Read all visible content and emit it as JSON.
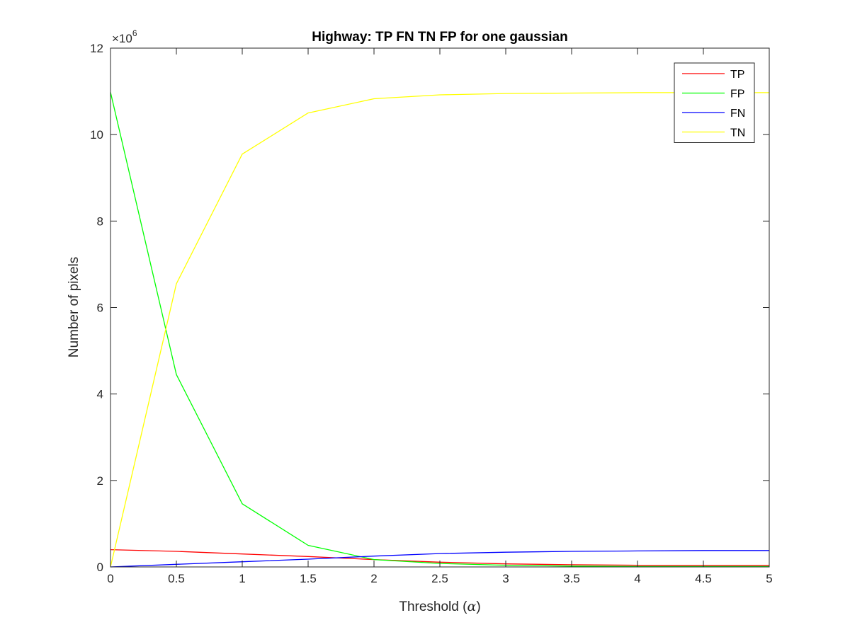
{
  "chart_data": {
    "type": "line",
    "title": "Highway: TP FN TN FP for one gaussian",
    "xlabel_text": "Threshold (",
    "xlabel_symbol": "α",
    "xlabel_close": ")",
    "ylabel": "Number of pixels",
    "y_exponent_base": "×10",
    "y_exponent_power": "6",
    "xlim": [
      0,
      5
    ],
    "ylim": [
      0,
      12
    ],
    "x_ticks": [
      0,
      0.5,
      1,
      1.5,
      2,
      2.5,
      3,
      3.5,
      4,
      4.5,
      5
    ],
    "x_tick_labels": [
      "0",
      "0.5",
      "1",
      "1.5",
      "2",
      "2.5",
      "3",
      "3.5",
      "4",
      "4.5",
      "5"
    ],
    "y_ticks": [
      0,
      2,
      4,
      6,
      8,
      10,
      12
    ],
    "y_tick_labels": [
      "0",
      "2",
      "4",
      "6",
      "8",
      "10",
      "12"
    ],
    "y_unit_multiplier": 1000000,
    "grid": false,
    "legend_position": "top-right",
    "x": [
      0,
      0.5,
      1,
      1.5,
      2,
      2.5,
      3,
      3.5,
      4,
      4.5,
      5
    ],
    "series": [
      {
        "name": "TP",
        "color": "#ff0000",
        "values": [
          0.4,
          0.36,
          0.3,
          0.24,
          0.17,
          0.11,
          0.07,
          0.05,
          0.04,
          0.04,
          0.04
        ]
      },
      {
        "name": "FP",
        "color": "#00ff00",
        "values": [
          10.98,
          4.45,
          1.46,
          0.5,
          0.17,
          0.08,
          0.04,
          0.02,
          0.01,
          0.01,
          0.01
        ]
      },
      {
        "name": "FN",
        "color": "#0000ff",
        "values": [
          0.0,
          0.06,
          0.12,
          0.18,
          0.25,
          0.31,
          0.34,
          0.36,
          0.37,
          0.38,
          0.38
        ]
      },
      {
        "name": "TN",
        "color": "#ffff00",
        "values": [
          0.0,
          6.55,
          9.55,
          10.5,
          10.83,
          10.92,
          10.95,
          10.96,
          10.97,
          10.97,
          10.97
        ]
      }
    ]
  }
}
